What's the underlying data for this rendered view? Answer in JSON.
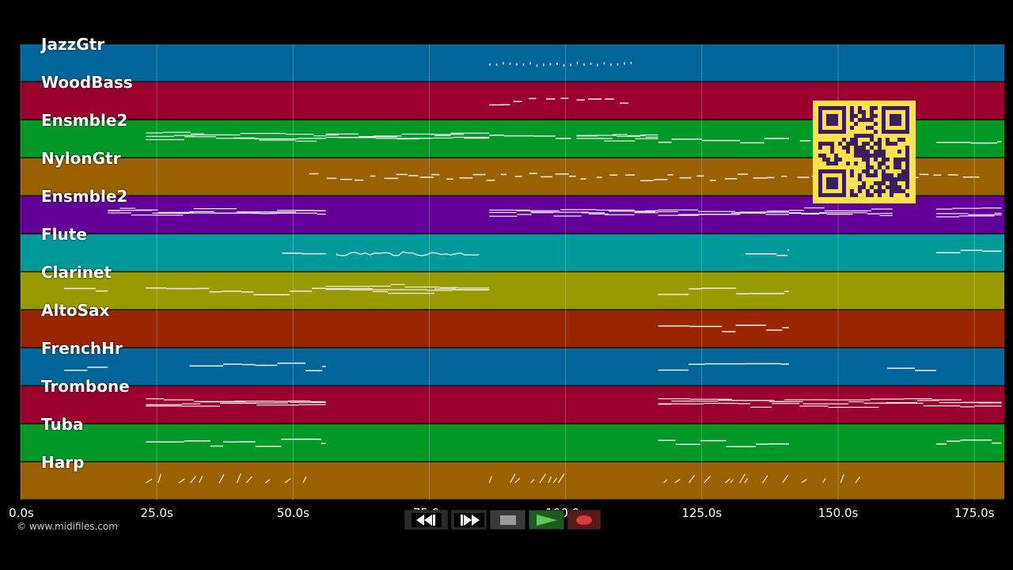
{
  "tracks": [
    {
      "name": "JazzGtr",
      "color": "#006699"
    },
    {
      "name": "WoodBass",
      "color": "#99002e"
    },
    {
      "name": "Ensmble2",
      "color": "#009926"
    },
    {
      "name": "NylonGtr",
      "color": "#996100"
    },
    {
      "name": "Ensmble2",
      "color": "#620099"
    },
    {
      "name": "Flute",
      "color": "#009999"
    },
    {
      "name": "Clarinet",
      "color": "#999900"
    },
    {
      "name": "AltoSax",
      "color": "#992600"
    },
    {
      "name": "FrenchHr",
      "color": "#006699"
    },
    {
      "name": "Trombone",
      "color": "#99002e"
    },
    {
      "name": "Tuba",
      "color": "#009926"
    },
    {
      "name": "Harp",
      "color": "#996100"
    }
  ],
  "timeline": {
    "ticks": [
      {
        "t": 0,
        "label": "0.0s"
      },
      {
        "t": 25,
        "label": "25.0s"
      },
      {
        "t": 50,
        "label": "50.0s"
      },
      {
        "t": 75,
        "label": "75.0s"
      },
      {
        "t": 100,
        "label": "100.0s"
      },
      {
        "t": 125,
        "label": "125.0s"
      },
      {
        "t": 150,
        "label": "150.0s"
      },
      {
        "t": 175,
        "label": "175.0s"
      }
    ],
    "max_seconds": 180.5
  },
  "copyright": "© www.midifiles.com",
  "transport": {
    "rewind_icon": "rewind-icon",
    "forward_icon": "fast-forward-icon",
    "stop_icon": "stop-icon",
    "play_icon": "play-icon",
    "record_icon": "record-icon"
  },
  "qr_icon": "qr-code-icon",
  "notes": [
    {
      "track": 0,
      "segments": [
        [
          86,
          112,
          "dots"
        ]
      ]
    },
    {
      "track": 1,
      "segments": [
        [
          86,
          112,
          "dash"
        ]
      ]
    },
    {
      "track": 2,
      "segments": [
        [
          23,
          56,
          "multi"
        ],
        [
          56,
          86,
          "multi"
        ],
        [
          86,
          101,
          "line"
        ],
        [
          102,
          117,
          "multi"
        ],
        [
          117,
          141,
          "line"
        ],
        [
          143,
          145,
          "line"
        ],
        [
          168,
          180,
          "line"
        ]
      ]
    },
    {
      "track": 3,
      "segments": [
        [
          53,
          177,
          "dash"
        ]
      ]
    },
    {
      "track": 4,
      "segments": [
        [
          16,
          56,
          "multi"
        ],
        [
          86,
          117,
          "multi"
        ],
        [
          117,
          141,
          "multi"
        ],
        [
          141,
          160,
          "multi"
        ],
        [
          168,
          180,
          "multi"
        ]
      ]
    },
    {
      "track": 5,
      "segments": [
        [
          48,
          56,
          "line"
        ],
        [
          58,
          85,
          "wave"
        ],
        [
          133,
          141,
          "line"
        ],
        [
          168,
          180,
          "line"
        ]
      ]
    },
    {
      "track": 6,
      "segments": [
        [
          8,
          16,
          "line"
        ],
        [
          23,
          56,
          "line"
        ],
        [
          56,
          86,
          "multi"
        ],
        [
          117,
          141,
          "line"
        ]
      ]
    },
    {
      "track": 7,
      "segments": [
        [
          117,
          141,
          "line"
        ]
      ]
    },
    {
      "track": 8,
      "segments": [
        [
          8,
          16,
          "line"
        ],
        [
          31,
          56,
          "line"
        ],
        [
          117,
          141,
          "line"
        ],
        [
          159,
          168,
          "line"
        ]
      ]
    },
    {
      "track": 9,
      "segments": [
        [
          23,
          56,
          "multi"
        ],
        [
          117,
          180,
          "multi"
        ]
      ]
    },
    {
      "track": 10,
      "segments": [
        [
          23,
          56,
          "line"
        ],
        [
          117,
          141,
          "line"
        ],
        [
          168,
          180,
          "line"
        ]
      ]
    },
    {
      "track": 11,
      "segments": [
        [
          23,
          55,
          "ticks"
        ],
        [
          86,
          99,
          "ticks"
        ],
        [
          118,
          156,
          "ticks"
        ]
      ]
    }
  ]
}
